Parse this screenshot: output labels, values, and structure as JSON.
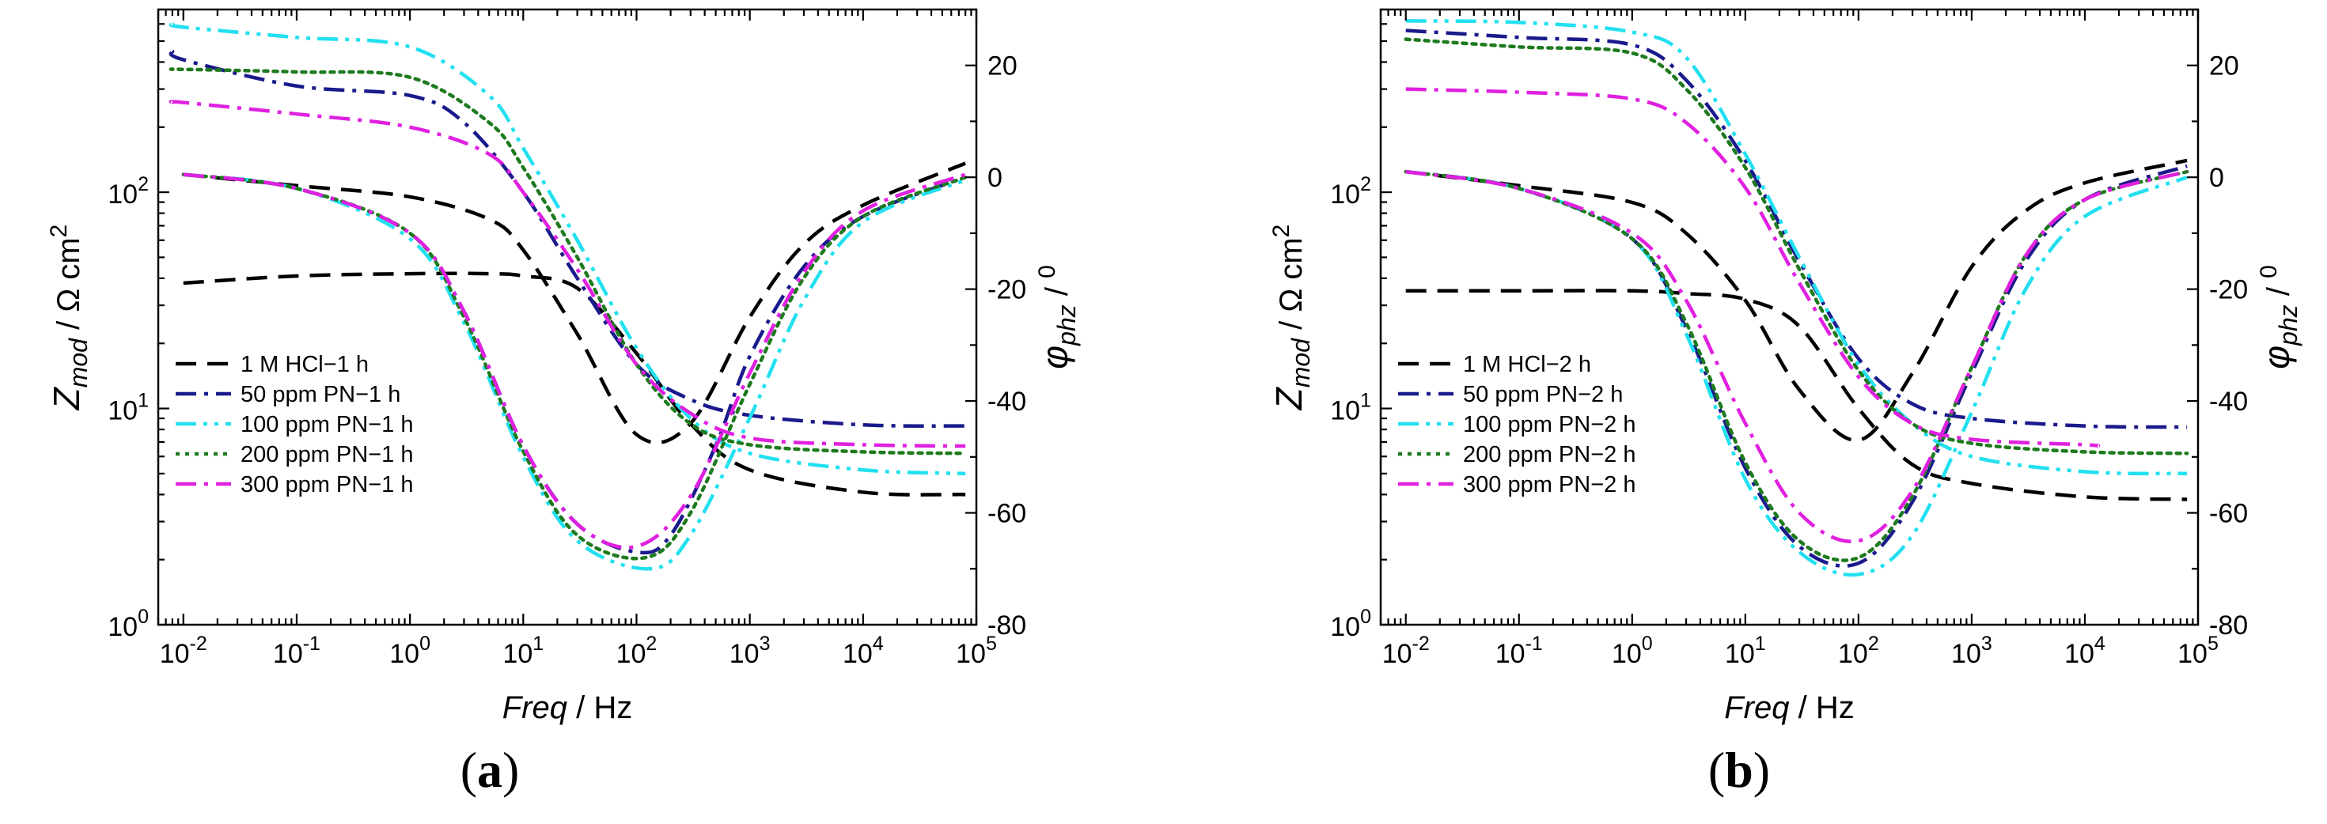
{
  "chart_data": [
    {
      "type": "line",
      "panel_label": "a",
      "xlabel_italic": "Freq",
      "xlabel_unit": " / Hz",
      "ylabel_left": {
        "base": "Z",
        "sub": "mod",
        "unit": " / Ω cm",
        "sup": "2"
      },
      "ylabel_right": {
        "sym": "φ",
        "sub": "phz",
        "unit": " / ",
        "sup": "0"
      },
      "x_scale": "log",
      "x_range": [
        0.006,
        100000
      ],
      "x_ticks": [
        {
          "value": 0.01,
          "base": "10",
          "exp": "-2"
        },
        {
          "value": 0.1,
          "base": "10",
          "exp": "-1"
        },
        {
          "value": 1,
          "base": "10",
          "exp": "0"
        },
        {
          "value": 10,
          "base": "10",
          "exp": "1"
        },
        {
          "value": 100,
          "base": "10",
          "exp": "2"
        },
        {
          "value": 1000,
          "base": "10",
          "exp": "3"
        },
        {
          "value": 10000,
          "base": "10",
          "exp": "4"
        },
        {
          "value": 100000,
          "base": "10",
          "exp": "5"
        }
      ],
      "y_left_scale": "log",
      "y_left_range": [
        1,
        700
      ],
      "y_left_ticks": [
        {
          "value": 1,
          "base": "10",
          "exp": "0"
        },
        {
          "value": 10,
          "base": "10",
          "exp": "1"
        },
        {
          "value": 100,
          "base": "10",
          "exp": "2"
        }
      ],
      "y_right_range": [
        -80,
        30
      ],
      "y_right_ticks": [
        "20",
        "0",
        "-20",
        "-40",
        "-60",
        "-80"
      ],
      "legend_location": "lower-left",
      "series": [
        {
          "name": "1 M HCl−1 h",
          "color": "#000000",
          "dash": "dash",
          "x": [
            0.01,
            0.1,
            1,
            5,
            10,
            30,
            100,
            300,
            1000,
            10000,
            80000
          ],
          "modulus": [
            38,
            41,
            42,
            42,
            41,
            36,
            18,
            8.5,
            5.2,
            4.1,
            4.0
          ],
          "x_phase": [
            0.01,
            0.1,
            1,
            5,
            10,
            30,
            100,
            300,
            1000,
            3000,
            10000,
            80000
          ],
          "phase": [
            0.5,
            -1.5,
            -3.5,
            -7.5,
            -13,
            -28,
            -46,
            -44,
            -25,
            -12,
            -5,
            2.5
          ]
        },
        {
          "name": "50 ppm PN−1 h",
          "color": "#1a1a8c",
          "dash": "dashdot",
          "x": [
            0.008,
            0.01,
            0.1,
            1,
            3,
            10,
            30,
            100,
            300,
            1000,
            10000,
            80000
          ],
          "modulus": [
            450,
            410,
            310,
            280,
            210,
            100,
            40,
            16,
            11,
            9.3,
            8.4,
            8.3
          ],
          "x_phase": [
            0.01,
            0.1,
            1,
            3,
            10,
            30,
            100,
            200,
            500,
            1000,
            3000,
            10000,
            80000
          ],
          "phase": [
            0.5,
            -2,
            -10,
            -24,
            -48,
            -62,
            -67,
            -64,
            -48,
            -32,
            -16,
            -7,
            0
          ]
        },
        {
          "name": "100 ppm PN−1 h",
          "color": "#22e0f0",
          "dash": "dashdotdot",
          "x": [
            0.008,
            0.01,
            0.1,
            1,
            5,
            10,
            30,
            100,
            300,
            1000,
            10000,
            80000
          ],
          "modulus": [
            600,
            580,
            520,
            470,
            280,
            160,
            60,
            19,
            9,
            6.2,
            5.2,
            5.0
          ],
          "x_phase": [
            0.01,
            0.1,
            1,
            3,
            10,
            30,
            130,
            300,
            1000,
            3000,
            10000,
            80000
          ],
          "phase": [
            0.5,
            -2,
            -11,
            -26,
            -50,
            -65,
            -70,
            -64,
            -43,
            -22,
            -8,
            -0.5
          ]
        },
        {
          "name": "200 ppm PN−1 h",
          "color": "#1e7a1e",
          "dash": "dot",
          "x": [
            0.008,
            0.01,
            0.1,
            1,
            5,
            10,
            30,
            100,
            300,
            1000,
            10000,
            80000
          ],
          "modulus": [
            370,
            370,
            360,
            340,
            210,
            130,
            50,
            16,
            8.5,
            6.8,
            6.3,
            6.2
          ],
          "x_phase": [
            0.01,
            0.1,
            1,
            3,
            10,
            30,
            120,
            300,
            1000,
            3000,
            10000,
            80000
          ],
          "phase": [
            0.5,
            -2,
            -10,
            -25,
            -49,
            -64,
            -68,
            -60,
            -37,
            -18,
            -7,
            0
          ]
        },
        {
          "name": "300 ppm PN−1 h",
          "color": "#e020e0",
          "dash": "dashdot",
          "x": [
            0.008,
            0.01,
            0.1,
            1,
            5,
            10,
            30,
            100,
            300,
            1000,
            10000,
            80000
          ],
          "modulus": [
            260,
            260,
            230,
            200,
            150,
            100,
            44,
            16,
            9.5,
            7.3,
            6.8,
            6.7
          ],
          "x_phase": [
            0.01,
            0.1,
            1,
            3,
            10,
            30,
            100,
            300,
            1000,
            3000,
            10000,
            80000
          ],
          "phase": [
            0.5,
            -2,
            -10,
            -24,
            -48,
            -62,
            -66,
            -57,
            -35,
            -17,
            -6,
            0.5
          ]
        }
      ]
    },
    {
      "type": "line",
      "panel_label": "b",
      "xlabel_italic": "Freq",
      "xlabel_unit": " / Hz",
      "ylabel_left": {
        "base": "Z",
        "sub": "mod",
        "unit": " / Ω cm",
        "sup": "2"
      },
      "ylabel_right": {
        "sym": "φ",
        "sub": "phz",
        "unit": " / ",
        "sup": "0"
      },
      "x_scale": "log",
      "x_range": [
        0.006,
        100000
      ],
      "x_ticks": [
        {
          "value": 0.01,
          "base": "10",
          "exp": "-2"
        },
        {
          "value": 0.1,
          "base": "10",
          "exp": "-1"
        },
        {
          "value": 1,
          "base": "10",
          "exp": "0"
        },
        {
          "value": 10,
          "base": "10",
          "exp": "1"
        },
        {
          "value": 100,
          "base": "10",
          "exp": "2"
        },
        {
          "value": 1000,
          "base": "10",
          "exp": "3"
        },
        {
          "value": 10000,
          "base": "10",
          "exp": "4"
        },
        {
          "value": 100000,
          "base": "10",
          "exp": "5"
        }
      ],
      "y_left_scale": "log",
      "y_left_range": [
        1,
        700
      ],
      "y_left_ticks": [
        {
          "value": 1,
          "base": "10",
          "exp": "0"
        },
        {
          "value": 10,
          "base": "10",
          "exp": "1"
        },
        {
          "value": 100,
          "base": "10",
          "exp": "2"
        }
      ],
      "y_right_range": [
        -80,
        30
      ],
      "y_right_ticks": [
        "20",
        "0",
        "-20",
        "-40",
        "-60",
        "-80"
      ],
      "legend_location": "lower-left",
      "series": [
        {
          "name": "1 M HCl−2 h",
          "color": "#000000",
          "dash": "dash",
          "x": [
            0.01,
            0.1,
            1,
            3,
            10,
            30,
            100,
            300,
            1000,
            10000,
            80000
          ],
          "modulus": [
            35,
            35,
            35,
            34,
            32,
            24,
            10,
            5.5,
            4.5,
            3.9,
            3.8
          ],
          "x_phase": [
            0.01,
            0.1,
            1,
            3,
            10,
            30,
            100,
            300,
            1000,
            3000,
            10000,
            80000
          ],
          "phase": [
            1,
            -1.5,
            -4.5,
            -10,
            -22,
            -38,
            -47,
            -35,
            -16,
            -6,
            -1,
            3
          ]
        },
        {
          "name": "50 ppm PN−2 h",
          "color": "#1a1a8c",
          "dash": "dashdot",
          "x": [
            0.01,
            0.1,
            1,
            3,
            10,
            30,
            100,
            300,
            1000,
            10000,
            80000
          ],
          "modulus": [
            560,
            520,
            480,
            330,
            140,
            48,
            17,
            10.5,
            9,
            8.3,
            8.2
          ],
          "x_phase": [
            0.01,
            0.1,
            1,
            3,
            10,
            30,
            100,
            300,
            1000,
            3000,
            10000,
            80000
          ],
          "phase": [
            1,
            -2,
            -11,
            -27,
            -52,
            -66,
            -69,
            -58,
            -35,
            -15,
            -4,
            2
          ]
        },
        {
          "name": "100 ppm PN−2 h",
          "color": "#22e0f0",
          "dash": "dashdotdot",
          "x": [
            0.01,
            0.1,
            1,
            3,
            10,
            30,
            100,
            300,
            1000,
            10000,
            80000
          ],
          "modulus": [
            620,
            610,
            550,
            420,
            150,
            50,
            16,
            8.5,
            6,
            5.1,
            5.0
          ],
          "x_phase": [
            0.01,
            0.1,
            1,
            3,
            10,
            30,
            100,
            300,
            1000,
            3000,
            10000,
            80000
          ],
          "phase": [
            1,
            -2,
            -11,
            -28,
            -54,
            -67,
            -71,
            -64,
            -42,
            -20,
            -7,
            0
          ]
        },
        {
          "name": "200 ppm PN−2 h",
          "color": "#1e7a1e",
          "dash": "dot",
          "x": [
            0.01,
            0.1,
            1,
            3,
            10,
            30,
            100,
            300,
            1000,
            10000,
            80000
          ],
          "modulus": [
            510,
            470,
            440,
            300,
            130,
            44,
            15,
            8.5,
            6.9,
            6.3,
            6.2
          ],
          "x_phase": [
            0.01,
            0.1,
            1,
            3,
            10,
            30,
            100,
            300,
            1000,
            3000,
            10000,
            80000
          ],
          "phase": [
            1,
            -2,
            -11,
            -26,
            -51,
            -65,
            -68,
            -57,
            -34,
            -14,
            -4,
            1
          ]
        },
        {
          "name": "300 ppm PN−2 h",
          "color": "#e020e0",
          "dash": "dashdot",
          "x": [
            0.01,
            0.1,
            1,
            3,
            10,
            30,
            100,
            300,
            1000,
            10000,
            13000
          ],
          "modulus": [
            300,
            290,
            270,
            210,
            105,
            38,
            14,
            8.5,
            7.2,
            6.8,
            6.7
          ],
          "x_phase": [
            0.01,
            0.1,
            1,
            3,
            10,
            30,
            100,
            300,
            1000,
            3000,
            10000,
            80000
          ],
          "phase": [
            1,
            -2,
            -10,
            -22,
            -44,
            -60,
            -65,
            -56,
            -34,
            -14,
            -4,
            1
          ]
        }
      ]
    }
  ]
}
